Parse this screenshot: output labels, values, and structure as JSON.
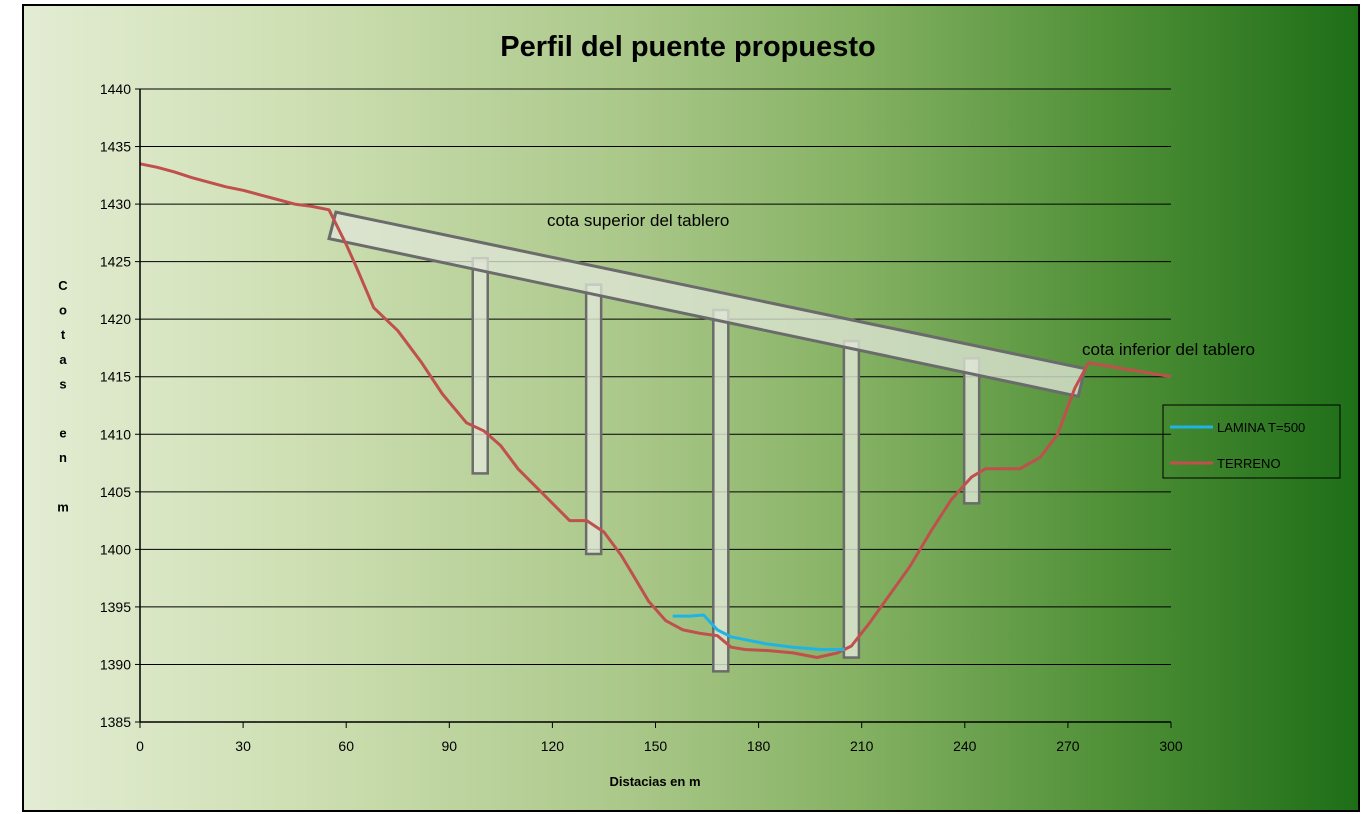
{
  "chart_data": {
    "type": "line",
    "title": "Perfil del puente propuesto",
    "xlabel": "Distacias en m",
    "ylabel": "Cotas en m",
    "xlim": [
      0,
      300
    ],
    "ylim": [
      1385,
      1440
    ],
    "x_ticks": [
      "0",
      "30",
      "60",
      "90",
      "120",
      "150",
      "180",
      "210",
      "240",
      "270",
      "300"
    ],
    "y_ticks": [
      "1385",
      "1390",
      "1395",
      "1400",
      "1405",
      "1410",
      "1415",
      "1420",
      "1425",
      "1430",
      "1435",
      "1440"
    ],
    "grid": "horizontal",
    "legend_position": "right",
    "series": [
      {
        "name": "LAMINA T=500",
        "color": "#1fb4e6",
        "x": [
          155,
          160,
          164,
          168,
          172,
          177,
          182,
          190,
          198,
          205
        ],
        "y": [
          1394.2,
          1394.2,
          1394.3,
          1393.0,
          1392.4,
          1392.1,
          1391.8,
          1391.5,
          1391.3,
          1391.3
        ]
      },
      {
        "name": "TERRENO",
        "color": "#c0504d",
        "x": [
          0,
          5,
          10,
          15,
          20,
          25,
          30,
          35,
          40,
          45,
          50,
          55,
          60,
          63,
          68,
          75,
          82,
          88,
          95,
          100,
          105,
          110,
          115,
          120,
          125,
          130,
          135,
          140,
          144,
          148,
          153,
          158,
          163,
          168,
          172,
          176,
          183,
          190,
          197,
          203,
          207,
          212,
          218,
          224,
          230,
          236,
          242,
          246,
          250,
          256,
          262,
          267,
          272,
          276,
          300
        ],
        "y": [
          1433.5,
          1433.2,
          1432.8,
          1432.3,
          1431.9,
          1431.5,
          1431.2,
          1430.8,
          1430.4,
          1430.0,
          1429.8,
          1429.5,
          1426.5,
          1424.5,
          1421.0,
          1419.0,
          1416.2,
          1413.5,
          1411.0,
          1410.3,
          1409.0,
          1407.0,
          1405.5,
          1404.0,
          1402.5,
          1402.5,
          1401.5,
          1399.5,
          1397.5,
          1395.5,
          1393.8,
          1393.0,
          1392.7,
          1392.5,
          1391.5,
          1391.3,
          1391.2,
          1391.0,
          1390.6,
          1391.0,
          1391.6,
          1393.5,
          1396.0,
          1398.5,
          1401.5,
          1404.3,
          1406.3,
          1407.0,
          1407.0,
          1407.0,
          1408.0,
          1410.0,
          1414.0,
          1416.2,
          1415.0
        ]
      }
    ],
    "deck": {
      "top": [
        [
          57,
          1429.3
        ],
        [
          275,
          1415.7
        ]
      ],
      "bottom": [
        [
          55,
          1427.0
        ],
        [
          273,
          1413.3
        ]
      ]
    },
    "piers": [
      {
        "x": 99,
        "top": 1425.3,
        "bottom": 1406.6
      },
      {
        "x": 132,
        "top": 1423.0,
        "bottom": 1399.6
      },
      {
        "x": 169,
        "top": 1420.8,
        "bottom": 1389.4
      },
      {
        "x": 207,
        "top": 1418.1,
        "bottom": 1390.6
      },
      {
        "x": 242,
        "top": 1416.6,
        "bottom": 1404.0
      }
    ],
    "annotations": [
      "cota superior del tablero",
      "cota inferior del tablero"
    ]
  }
}
